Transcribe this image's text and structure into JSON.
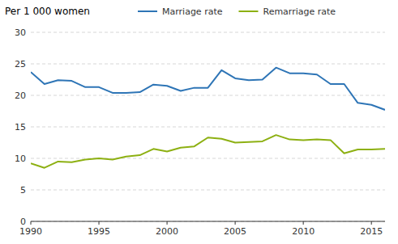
{
  "chart_data": {
    "type": "line",
    "y_label": "Per 1 000 women",
    "x": [
      1990,
      1991,
      1992,
      1993,
      1994,
      1995,
      1996,
      1997,
      1998,
      1999,
      2000,
      2001,
      2002,
      2003,
      2004,
      2005,
      2006,
      2007,
      2008,
      2009,
      2010,
      2011,
      2012,
      2013,
      2014,
      2015,
      2016
    ],
    "series": [
      {
        "name": "Marriage rate",
        "color": "#2E75B6",
        "values": [
          23.7,
          21.8,
          22.4,
          22.3,
          21.3,
          21.3,
          20.4,
          20.4,
          20.5,
          21.7,
          21.5,
          20.7,
          21.2,
          21.2,
          24.0,
          22.7,
          22.4,
          22.5,
          24.4,
          23.5,
          23.5,
          23.3,
          21.8,
          21.8,
          18.8,
          18.5,
          17.7
        ]
      },
      {
        "name": "Remarriage rate",
        "color": "#8DB012",
        "values": [
          9.2,
          8.5,
          9.5,
          9.4,
          9.8,
          10.0,
          9.8,
          10.3,
          10.5,
          11.5,
          11.1,
          11.7,
          11.9,
          13.3,
          13.1,
          12.5,
          12.6,
          12.7,
          13.7,
          13.0,
          12.9,
          13.0,
          12.9,
          10.8,
          11.4,
          11.4,
          11.5
        ]
      }
    ],
    "xlim": [
      1990,
      2016
    ],
    "xticks": [
      1990,
      1995,
      2000,
      2005,
      2010,
      2015
    ],
    "ylim": [
      0,
      30
    ],
    "yticks": [
      0,
      5,
      10,
      15,
      20,
      25,
      30
    ],
    "grid": "y",
    "legend": "top"
  }
}
